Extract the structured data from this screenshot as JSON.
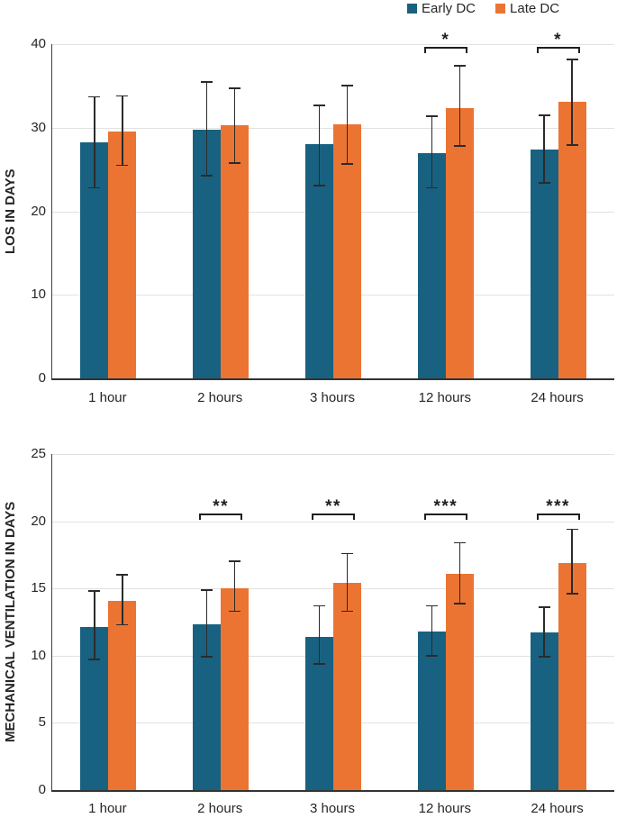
{
  "colors": {
    "early_dc": "#196180",
    "late_dc": "#EB7433",
    "gridline": "#E2E2E2",
    "axis": "#333333",
    "error_bar": "#2B2B2B",
    "bracket": "#1F1F1F",
    "text": "#262626"
  },
  "legend": {
    "position": "top-right",
    "items": [
      {
        "label": "Early DC",
        "color": "#196180"
      },
      {
        "label": "Late DC",
        "color": "#EB7433"
      }
    ]
  },
  "chart_data": [
    {
      "type": "bar",
      "title": "",
      "xlabel": "",
      "ylabel": "LOS IN DAYS",
      "ylim": [
        0,
        40
      ],
      "yticks": [
        0,
        10,
        20,
        30,
        40
      ],
      "grid": true,
      "legend_position": "top-right",
      "categories": [
        "1 hour",
        "2 hours",
        "3 hours",
        "12 hours",
        "24 hours"
      ],
      "series": [
        {
          "name": "Early DC",
          "values": [
            28.3,
            29.8,
            28.0,
            27.0,
            27.4
          ],
          "error_low": [
            22.8,
            24.3,
            23.1,
            22.8,
            23.4
          ],
          "error_high": [
            33.7,
            35.5,
            32.7,
            31.4,
            31.5
          ]
        },
        {
          "name": "Late DC",
          "values": [
            29.5,
            30.3,
            30.4,
            32.4,
            33.1
          ],
          "error_low": [
            25.5,
            25.8,
            25.7,
            27.8,
            27.9
          ],
          "error_high": [
            33.8,
            34.7,
            35.0,
            37.4,
            38.2
          ]
        }
      ],
      "sig_bracket_y": 39.7,
      "significance": [
        {
          "category": "12 hours",
          "label": "*"
        },
        {
          "category": "24 hours",
          "label": "*"
        }
      ]
    },
    {
      "type": "bar",
      "title": "",
      "xlabel": "",
      "ylabel": "MECHANICAL VENTILATION IN DAYS",
      "ylim": [
        0,
        25
      ],
      "yticks": [
        0,
        5,
        10,
        15,
        20,
        25
      ],
      "grid": true,
      "legend_position": "none",
      "categories": [
        "1 hour",
        "2 hours",
        "3 hours",
        "12 hours",
        "24 hours"
      ],
      "series": [
        {
          "name": "Early DC",
          "values": [
            12.1,
            12.3,
            11.4,
            11.8,
            11.7
          ],
          "error_low": [
            9.7,
            9.9,
            9.4,
            10.0,
            9.9
          ],
          "error_high": [
            14.8,
            14.9,
            13.7,
            13.7,
            13.6
          ]
        },
        {
          "name": "Late DC",
          "values": [
            14.1,
            15.0,
            15.4,
            16.1,
            16.9
          ],
          "error_low": [
            12.3,
            13.3,
            13.3,
            13.9,
            14.6
          ],
          "error_high": [
            16.0,
            17.0,
            17.6,
            18.4,
            19.4
          ]
        }
      ],
      "sig_bracket_y": 20.6,
      "significance": [
        {
          "category": "2 hours",
          "label": "**"
        },
        {
          "category": "3 hours",
          "label": "**"
        },
        {
          "category": "12 hours",
          "label": "***"
        },
        {
          "category": "24 hours",
          "label": "***"
        }
      ]
    }
  ]
}
